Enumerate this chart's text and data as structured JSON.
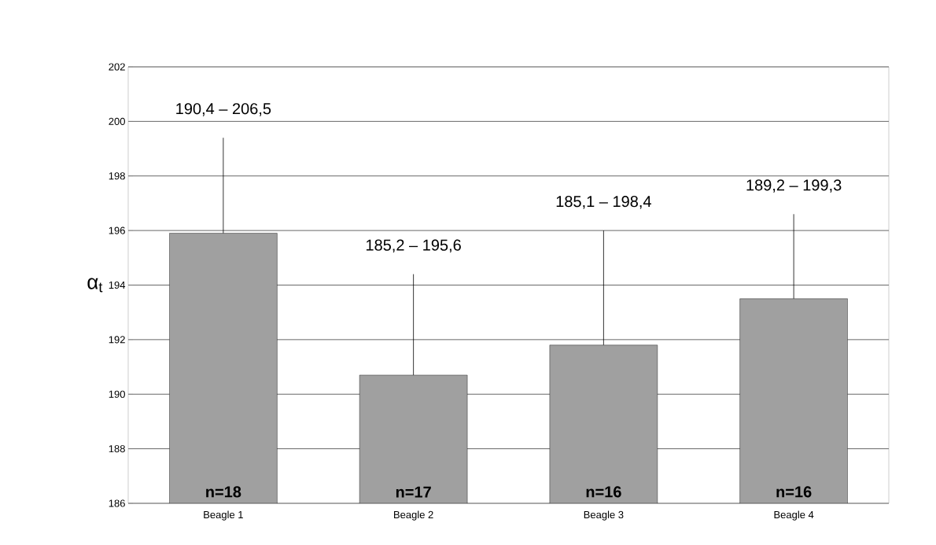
{
  "chart_data": {
    "type": "bar",
    "ylabel": "α$_{t}$",
    "categories": [
      "Beagle 1",
      "Beagle 2",
      "Beagle 3",
      "Beagle 4"
    ],
    "values": [
      195.9,
      190.7,
      191.8,
      193.5
    ],
    "color": "#a0a0a0",
    "errors": [
      [
        195.9,
        199.4
      ],
      [
        190.7,
        194.4
      ],
      [
        191.8,
        196.0
      ],
      [
        193.5,
        196.6
      ]
    ],
    "ylim": [
      186,
      202
    ],
    "yticks": [
      186,
      188,
      190,
      192,
      194,
      196,
      198,
      200,
      202
    ],
    "grid": "y",
    "annotations": [
      "190,4 – 206,5",
      "185,2 – 195,6",
      "185,1 – 198,4",
      "189,2 – 199,3",
      "n=18",
      "n=17",
      "n=16",
      "n=16"
    ]
  }
}
